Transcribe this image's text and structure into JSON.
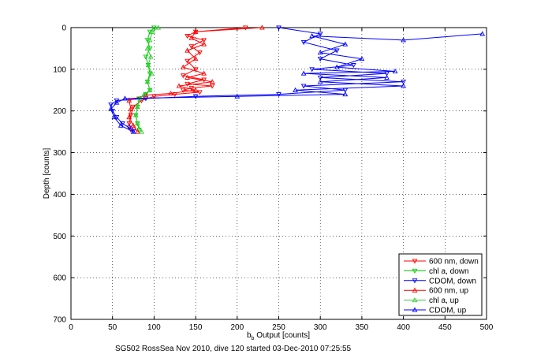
{
  "chart_data": {
    "type": "line",
    "title": "",
    "xlabel_main": "b",
    "xlabel_sub": "b",
    "xlabel_rest": " Output [counts]",
    "ylabel": "Depth [counts]",
    "xlim": [
      0,
      500
    ],
    "ylim": [
      0,
      700
    ],
    "y_reversed": true,
    "grid": true,
    "x_ticks": [
      "0",
      "50",
      "100",
      "150",
      "200",
      "250",
      "300",
      "350",
      "400",
      "450",
      "500"
    ],
    "y_ticks": [
      "0",
      "100",
      "200",
      "300",
      "400",
      "500",
      "600",
      "700"
    ],
    "legend_position": "bottom-right",
    "series": [
      {
        "name": "600 nm, down",
        "color": "#ff0000",
        "marker": "triangle-down",
        "points": [
          [
            210,
            0
          ],
          [
            150,
            10
          ],
          [
            140,
            20
          ],
          [
            160,
            30
          ],
          [
            145,
            45
          ],
          [
            155,
            60
          ],
          [
            140,
            80
          ],
          [
            150,
            100
          ],
          [
            135,
            115
          ],
          [
            160,
            125
          ],
          [
            140,
            135
          ],
          [
            170,
            140
          ],
          [
            145,
            145
          ],
          [
            135,
            150
          ],
          [
            155,
            155
          ],
          [
            125,
            160
          ],
          [
            100,
            165
          ],
          [
            85,
            175
          ],
          [
            75,
            190
          ],
          [
            72,
            210
          ],
          [
            70,
            230
          ],
          [
            72,
            245
          ]
        ]
      },
      {
        "name": "chl a, down",
        "color": "#00cc00",
        "marker": "triangle-down",
        "points": [
          [
            100,
            0
          ],
          [
            95,
            10
          ],
          [
            92,
            30
          ],
          [
            95,
            50
          ],
          [
            90,
            70
          ],
          [
            93,
            90
          ],
          [
            95,
            110
          ],
          [
            92,
            130
          ],
          [
            95,
            150
          ],
          [
            90,
            160
          ],
          [
            82,
            170
          ],
          [
            80,
            190
          ],
          [
            78,
            210
          ],
          [
            80,
            230
          ],
          [
            82,
            245
          ]
        ]
      },
      {
        "name": "CDOM, down",
        "color": "#0000ff",
        "marker": "triangle-down",
        "points": [
          [
            250,
            0
          ],
          [
            300,
            15
          ],
          [
            280,
            35
          ],
          [
            320,
            55
          ],
          [
            300,
            75
          ],
          [
            340,
            90
          ],
          [
            290,
            100
          ],
          [
            380,
            110
          ],
          [
            300,
            120
          ],
          [
            400,
            130
          ],
          [
            280,
            140
          ],
          [
            330,
            150
          ],
          [
            250,
            160
          ],
          [
            150,
            165
          ],
          [
            90,
            170
          ],
          [
            55,
            175
          ],
          [
            48,
            185
          ],
          [
            50,
            200
          ],
          [
            55,
            215
          ],
          [
            62,
            230
          ],
          [
            70,
            240
          ],
          [
            75,
            248
          ]
        ]
      },
      {
        "name": "600 nm, up",
        "color": "#ff0000",
        "marker": "triangle-up",
        "points": [
          [
            80,
            250
          ],
          [
            75,
            235
          ],
          [
            70,
            215
          ],
          [
            72,
            195
          ],
          [
            70,
            175
          ],
          [
            90,
            162
          ],
          [
            120,
            158
          ],
          [
            150,
            150
          ],
          [
            130,
            140
          ],
          [
            170,
            130
          ],
          [
            140,
            120
          ],
          [
            160,
            110
          ],
          [
            135,
            95
          ],
          [
            150,
            75
          ],
          [
            140,
            55
          ],
          [
            160,
            40
          ],
          [
            145,
            25
          ],
          [
            150,
            10
          ],
          [
            230,
            0
          ]
        ]
      },
      {
        "name": "chl a, up",
        "color": "#33cc33",
        "marker": "triangle-up",
        "points": [
          [
            85,
            250
          ],
          [
            80,
            230
          ],
          [
            78,
            210
          ],
          [
            80,
            190
          ],
          [
            83,
            170
          ],
          [
            88,
            160
          ],
          [
            95,
            150
          ],
          [
            92,
            130
          ],
          [
            97,
            110
          ],
          [
            93,
            90
          ],
          [
            96,
            70
          ],
          [
            92,
            50
          ],
          [
            95,
            30
          ],
          [
            98,
            10
          ],
          [
            105,
            0
          ]
        ]
      },
      {
        "name": "CDOM, up",
        "color": "#0000ff",
        "marker": "triangle-up",
        "points": [
          [
            75,
            250
          ],
          [
            60,
            235
          ],
          [
            52,
            215
          ],
          [
            48,
            195
          ],
          [
            55,
            180
          ],
          [
            65,
            170
          ],
          [
            200,
            165
          ],
          [
            330,
            160
          ],
          [
            270,
            150
          ],
          [
            400,
            140
          ],
          [
            300,
            130
          ],
          [
            380,
            120
          ],
          [
            280,
            110
          ],
          [
            390,
            105
          ],
          [
            320,
            95
          ],
          [
            350,
            75
          ],
          [
            300,
            60
          ],
          [
            330,
            40
          ],
          [
            290,
            20
          ],
          [
            400,
            30
          ],
          [
            495,
            15
          ]
        ]
      }
    ]
  },
  "caption": "SG502 RossSea Nov 2010, dive 120 started 03-Dec-2010 07:25:55"
}
